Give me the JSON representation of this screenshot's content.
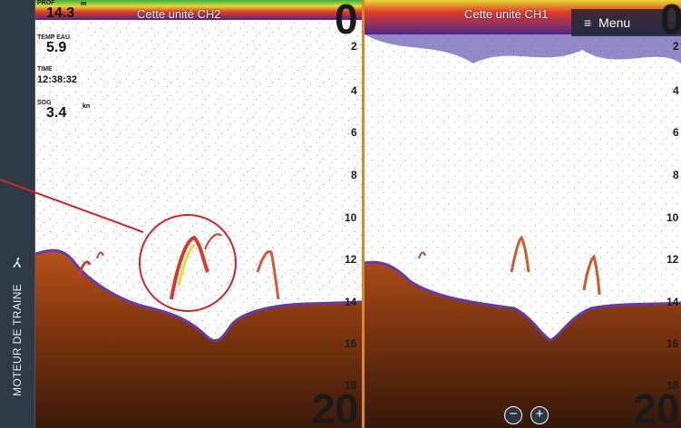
{
  "sidebar": {
    "label": "MOTEUR DE TRAINE",
    "icon": "fan-icon"
  },
  "left_pane": {
    "title": "Cette unité CH2",
    "depth_top": "0",
    "depth_bottom": "20",
    "ticks": [
      "2",
      "4",
      "6",
      "8",
      "10",
      "12",
      "14",
      "16",
      "18"
    ],
    "data": {
      "depth_label": "PROF",
      "depth_unit": "m",
      "depth_value": "14.3",
      "temp_label": "TEMP EAU",
      "temp_value": "5.9",
      "time_label": "TIME",
      "time_value": "12:38:32",
      "sog_label": "SOG",
      "sog_unit": "kn",
      "sog_value": "3.4"
    }
  },
  "right_pane": {
    "title": "Cette unité CH1",
    "depth_top": "0",
    "depth_bottom": "20",
    "ticks": [
      "2",
      "4",
      "6",
      "8",
      "10",
      "12",
      "14",
      "16",
      "18"
    ],
    "menu_label": "Menu",
    "zoom_out": "−",
    "zoom_in": "+"
  },
  "colors": {
    "sidebar_bg": "#2f3a47",
    "divider": "#d88a2b",
    "bottom": "#8a3a10",
    "callout": "#d0242b"
  }
}
